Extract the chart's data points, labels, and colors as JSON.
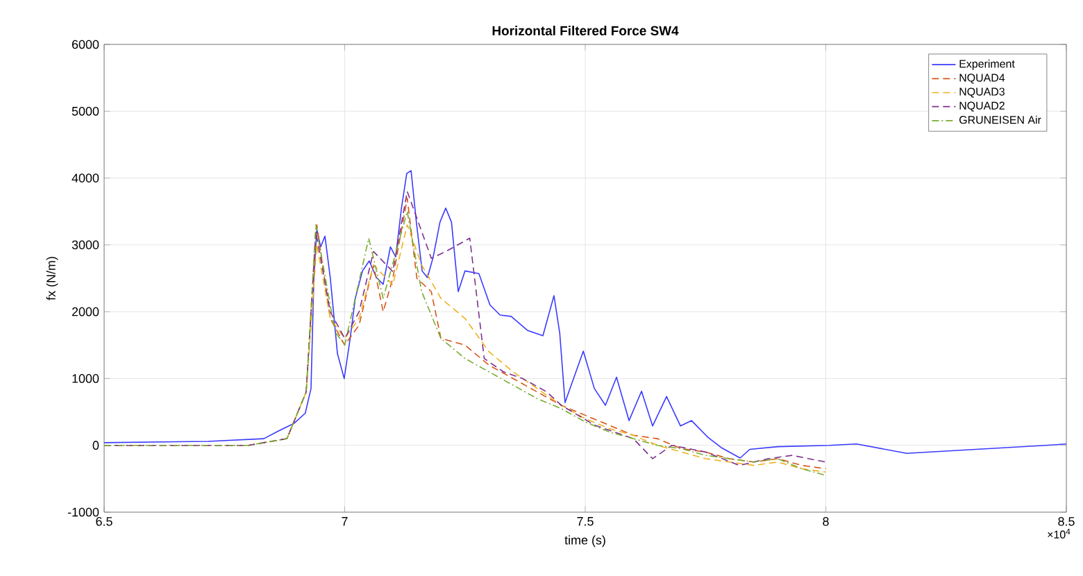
{
  "chart_data": {
    "type": "line",
    "title": "Horizontal Filtered Force SW4",
    "xlabel": "time (s)",
    "ylabel": "fx (N/m)",
    "annotations": [
      "×10$^{4}$"
    ],
    "xlim": [
      6.5,
      8.5
    ],
    "ylim": [
      -1000,
      6000
    ],
    "xticks": [
      6.5,
      7,
      7.5,
      8,
      8.5
    ],
    "yticks": [
      -1000,
      0,
      1000,
      2000,
      3000,
      4000,
      5000,
      6000
    ],
    "grid": true,
    "legend": "top right",
    "series": [
      {
        "name": "Experiment",
        "color": "#3a3aff",
        "line_style": "solid",
        "x": [
          6.5,
          6.716,
          6.832,
          6.861,
          6.895,
          6.918,
          6.93,
          6.936,
          6.942,
          6.95,
          6.959,
          6.97,
          6.985,
          6.999,
          7.011,
          7.022,
          7.037,
          7.051,
          7.066,
          7.08,
          7.095,
          7.106,
          7.118,
          7.129,
          7.138,
          7.149,
          7.161,
          7.172,
          7.184,
          7.198,
          7.21,
          7.222,
          7.236,
          7.25,
          7.279,
          7.302,
          7.323,
          7.346,
          7.38,
          7.412,
          7.435,
          7.447,
          7.458,
          7.496,
          7.519,
          7.542,
          7.565,
          7.591,
          7.617,
          7.64,
          7.669,
          7.698,
          7.721,
          7.755,
          7.784,
          7.822,
          7.842,
          7.9,
          8.007,
          8.064,
          8.168,
          8.312,
          8.457,
          8.5
        ],
        "values": [
          40,
          60,
          100,
          210,
          330,
          480,
          850,
          2510,
          3240,
          2970,
          3130,
          2510,
          1370,
          1000,
          1580,
          2200,
          2610,
          2760,
          2510,
          2410,
          2970,
          2820,
          3550,
          4070,
          4110,
          3340,
          2610,
          2510,
          2820,
          3340,
          3550,
          3340,
          2300,
          2610,
          2570,
          2100,
          1950,
          1930,
          1720,
          1640,
          2240,
          1680,
          640,
          1410,
          850,
          600,
          1020,
          370,
          810,
          290,
          730,
          290,
          370,
          120,
          -40,
          -190,
          -60,
          -20,
          0,
          20,
          -120,
          -60,
          0,
          20
        ]
      },
      {
        "name": "NQUAD4",
        "color": "#d95319",
        "line_style": "dashed",
        "x": [
          6.5,
          6.8,
          6.88,
          6.92,
          6.942,
          6.97,
          7.0,
          7.03,
          7.06,
          7.08,
          7.1,
          7.13,
          7.15,
          7.18,
          7.2,
          7.25,
          7.3,
          7.35,
          7.4,
          7.45,
          7.5,
          7.55,
          7.6,
          7.65,
          7.7,
          7.75,
          7.8,
          7.85,
          7.9,
          7.95,
          8.0
        ],
        "values": [
          0,
          0,
          100,
          800,
          3300,
          1900,
          1500,
          1800,
          2700,
          2000,
          2500,
          3700,
          2500,
          2300,
          1600,
          1500,
          1200,
          1000,
          800,
          600,
          450,
          300,
          150,
          100,
          -50,
          -100,
          -200,
          -250,
          -200,
          -300,
          -350
        ]
      },
      {
        "name": "NQUAD3",
        "color": "#edb120",
        "line_style": "dashed",
        "x": [
          6.88,
          6.92,
          6.942,
          6.97,
          7.0,
          7.03,
          7.06,
          7.1,
          7.13,
          7.16,
          7.2,
          7.25,
          7.3,
          7.35,
          7.4,
          7.45,
          7.5,
          7.55,
          7.6,
          7.65,
          7.7,
          7.75,
          7.8,
          7.85,
          7.9,
          7.95,
          8.0
        ],
        "values": [
          100,
          800,
          3000,
          1900,
          1600,
          1900,
          2700,
          2400,
          3300,
          2700,
          2200,
          1900,
          1400,
          1100,
          850,
          600,
          400,
          250,
          150,
          0,
          -100,
          -200,
          -250,
          -300,
          -250,
          -350,
          -400
        ]
      },
      {
        "name": "NQUAD2",
        "color": "#7e2f8e",
        "line_style": "dashed",
        "x": [
          6.5,
          6.8,
          6.88,
          6.92,
          6.94,
          6.97,
          7.0,
          7.03,
          7.06,
          7.1,
          7.13,
          7.18,
          7.21,
          7.26,
          7.29,
          7.33,
          7.37,
          7.42,
          7.45,
          7.52,
          7.6,
          7.64,
          7.68,
          7.75,
          7.82,
          7.88,
          7.93,
          8.0
        ],
        "values": [
          0,
          0,
          100,
          800,
          3200,
          2000,
          1600,
          2000,
          2900,
          2600,
          3800,
          2800,
          2900,
          3100,
          1300,
          1100,
          1000,
          800,
          600,
          300,
          100,
          -200,
          0,
          -100,
          -300,
          -200,
          -150,
          -250
        ]
      },
      {
        "name": "GRUNEISEN Air",
        "color": "#77ac30",
        "line_style": "dashdot",
        "x": [
          6.5,
          6.8,
          6.88,
          6.92,
          6.94,
          6.98,
          7.0,
          7.05,
          7.08,
          7.13,
          7.16,
          7.2,
          7.25,
          7.3,
          7.35,
          7.4,
          7.45,
          7.5,
          7.55,
          7.6,
          7.65,
          7.7,
          7.75,
          7.8,
          7.85,
          7.9,
          7.95,
          8.0
        ],
        "values": [
          0,
          0,
          100,
          800,
          3300,
          1700,
          1500,
          3100,
          2200,
          3500,
          2300,
          1600,
          1300,
          1100,
          900,
          700,
          550,
          350,
          200,
          100,
          0,
          -50,
          -150,
          -200,
          -250,
          -200,
          -350,
          -450
        ]
      }
    ]
  }
}
